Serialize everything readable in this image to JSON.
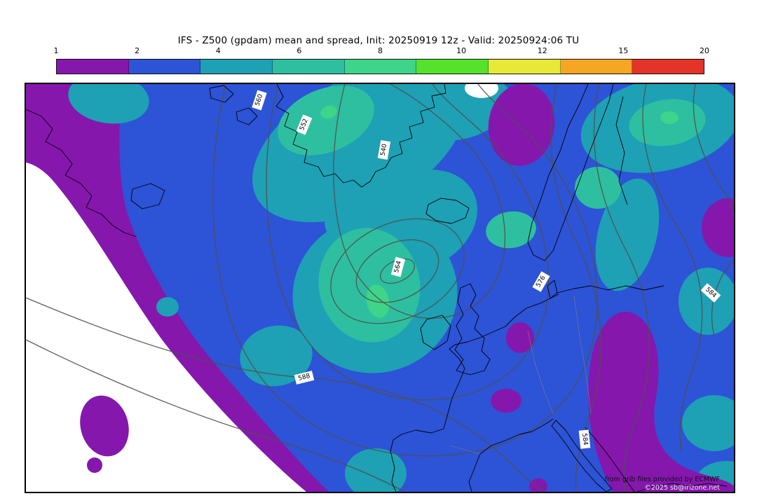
{
  "title": "IFS - Z500 (gpdam) mean and spread, Init: 20250919 12z - Valid: 20250924:06 TU",
  "colorbar": {
    "tick_labels": [
      "1",
      "2",
      "4",
      "6",
      "8",
      "10",
      "12",
      "15",
      "20"
    ],
    "colors": [
      "#8517ad",
      "#2d53d6",
      "#1ea0b5",
      "#2ebfa0",
      "#3ed489",
      "#54e22b",
      "#e8e838",
      "#f5a623",
      "#e43328"
    ]
  },
  "map": {
    "contour_labels": [
      "560",
      "552",
      "540",
      "564",
      "576",
      "584",
      "588",
      "584"
    ],
    "credits_line1": "from grib files provided by ECMWF",
    "credits_line2": "©2025 sb@irizone.net"
  },
  "chart_data": {
    "type": "heatmap",
    "title": "IFS - Z500 (gpdam) mean and spread, Init: 20250919 12z - Valid: 20250924:06 TU",
    "model": "IFS",
    "field": "Z500 (gpdam) mean and spread",
    "init": "20250919 12z",
    "valid": "20250924:06 TU",
    "legend_position": "top",
    "spread_fill_levels_gpdam": [
      1,
      2,
      4,
      6,
      8,
      10,
      12,
      15,
      20
    ],
    "spread_fill_colors": [
      "#8517ad",
      "#2d53d6",
      "#1ea0b5",
      "#2ebfa0",
      "#3ed489",
      "#54e22b",
      "#e8e838",
      "#f5a623",
      "#e43328"
    ],
    "spread_bands_visible_on_map": [
      "<1 (white)",
      "1-2 purple",
      "2-4 blue",
      "4-6 teal",
      "6-8 sea-green",
      "8-10 green"
    ],
    "mean_contour_labels_gpdam": [
      560,
      552,
      540,
      564,
      576,
      584,
      588,
      584
    ],
    "region": "North Atlantic - Europe",
    "credits": [
      "from grib files provided by ECMWF",
      "©2025 sb@irizone.net"
    ]
  }
}
